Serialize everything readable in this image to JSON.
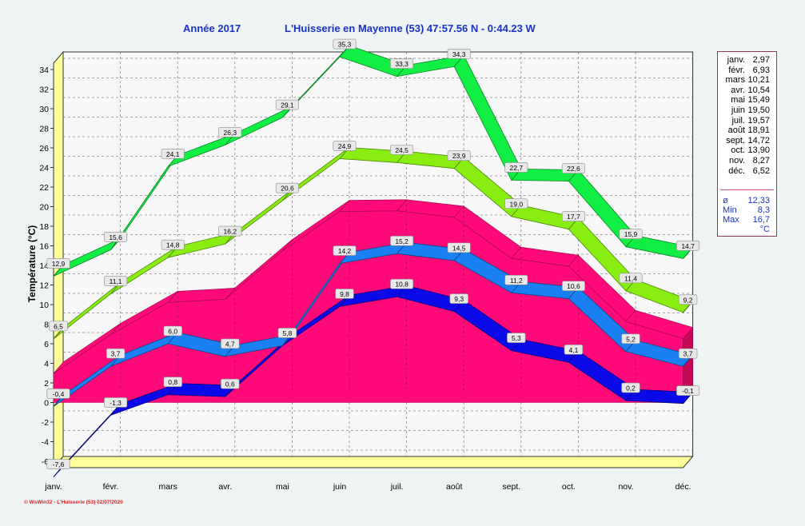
{
  "header": {
    "year_label": "Année  2017",
    "station_label": "L'Huisserie en Mayenne (53) 47:57.56 N - 0:44.23 W"
  },
  "legend": {
    "months": [
      {
        "label": "janv.",
        "value": "2,97"
      },
      {
        "label": "févr.",
        "value": "6,93"
      },
      {
        "label": "mars",
        "value": "10,21"
      },
      {
        "label": "avr.",
        "value": "10,54"
      },
      {
        "label": "mai",
        "value": "15,49"
      },
      {
        "label": "juin",
        "value": "19,50"
      },
      {
        "label": "juil.",
        "value": "19,57"
      },
      {
        "label": "août",
        "value": "18,91"
      },
      {
        "label": "sept.",
        "value": "14,72"
      },
      {
        "label": "oct.",
        "value": "13,90"
      },
      {
        "label": "nov.",
        "value": "8,27"
      },
      {
        "label": "déc.",
        "value": "6,52"
      }
    ],
    "stats": [
      {
        "label": "ø",
        "value": "12,33"
      },
      {
        "label": "Min",
        "value": "8,3"
      },
      {
        "label": "Max",
        "value": "16,7"
      }
    ],
    "unit": "°C"
  },
  "footer": "© WsWin32 - L'Huisserie (53)  02/07/2020",
  "colors": {
    "background": "#eef3f4",
    "plot_back": "#f7f7f7",
    "floor": "#ffff99",
    "mean_area": "#ff0a78",
    "mean_area_dark": "#c40858",
    "abs_max": "#11ee44",
    "avg_max": "#88ee11",
    "avg_min": "#1a7ff0",
    "abs_min": "#0a0ae8",
    "title": "#1a32c8"
  },
  "chart_data": {
    "type": "line",
    "title": "Année  2017",
    "ylabel": "Température  (°C)",
    "ylim": [
      -6,
      34
    ],
    "yticks": [
      "-6",
      "-4",
      "-2",
      "0",
      "2",
      "4",
      "6",
      "8",
      "10",
      "12",
      "14",
      "16",
      "18",
      "20",
      "22",
      "24",
      "26",
      "28",
      "30",
      "32",
      "34"
    ],
    "categories": [
      "janv.",
      "févr.",
      "mars",
      "avr.",
      "mai",
      "juin",
      "juil.",
      "août",
      "sept.",
      "oct.",
      "nov.",
      "déc."
    ],
    "series": [
      {
        "values": [
          12.9,
          15.6,
          24.1,
          26.3,
          29.1,
          35.3,
          33.3,
          34.3,
          22.7,
          22.6,
          15.9,
          14.7
        ],
        "labels": [
          "12,9",
          "15,6",
          "24,1",
          "26,3",
          "29,1",
          "35,3",
          "33,3",
          "34,3",
          "22,7",
          "22,6",
          "15,9",
          "14,7"
        ]
      },
      {
        "values": [
          6.5,
          11.1,
          14.8,
          16.2,
          20.6,
          24.9,
          24.5,
          23.9,
          19.0,
          17.7,
          11.4,
          9.2
        ],
        "labels": [
          "6,5",
          "11,1",
          "14,8",
          "16,2",
          "20,6",
          "24,9",
          "24,5",
          "23,9",
          "19,0",
          "17,7",
          "11,4",
          "9,2"
        ]
      },
      {
        "values": [
          2.97,
          6.93,
          10.21,
          10.54,
          15.49,
          19.5,
          19.57,
          18.91,
          14.72,
          13.9,
          8.27,
          6.52
        ]
      },
      {
        "values": [
          -0.4,
          3.7,
          6.0,
          4.7,
          5.8,
          14.2,
          15.2,
          14.5,
          11.2,
          10.6,
          5.2,
          3.7
        ],
        "labels": [
          "-0,4",
          "3,7",
          "6,0",
          "4,7",
          "5,8",
          "14,2",
          "15,2",
          "14,5",
          "11,2",
          "10,6",
          "5,2",
          "3,7"
        ]
      },
      {
        "values": [
          -7.6,
          -1.3,
          0.8,
          0.6,
          5.8,
          9.8,
          10.8,
          9.3,
          5.3,
          4.1,
          0.2,
          -0.1
        ],
        "labels": [
          "-7,6",
          "-1,3",
          "0,8",
          "0,6",
          "5,8",
          "9,8",
          "10,8",
          "9,3",
          "5,3",
          "4,1",
          "0,2",
          "-0,1"
        ]
      }
    ],
    "grid": true,
    "legend_position": "right"
  }
}
